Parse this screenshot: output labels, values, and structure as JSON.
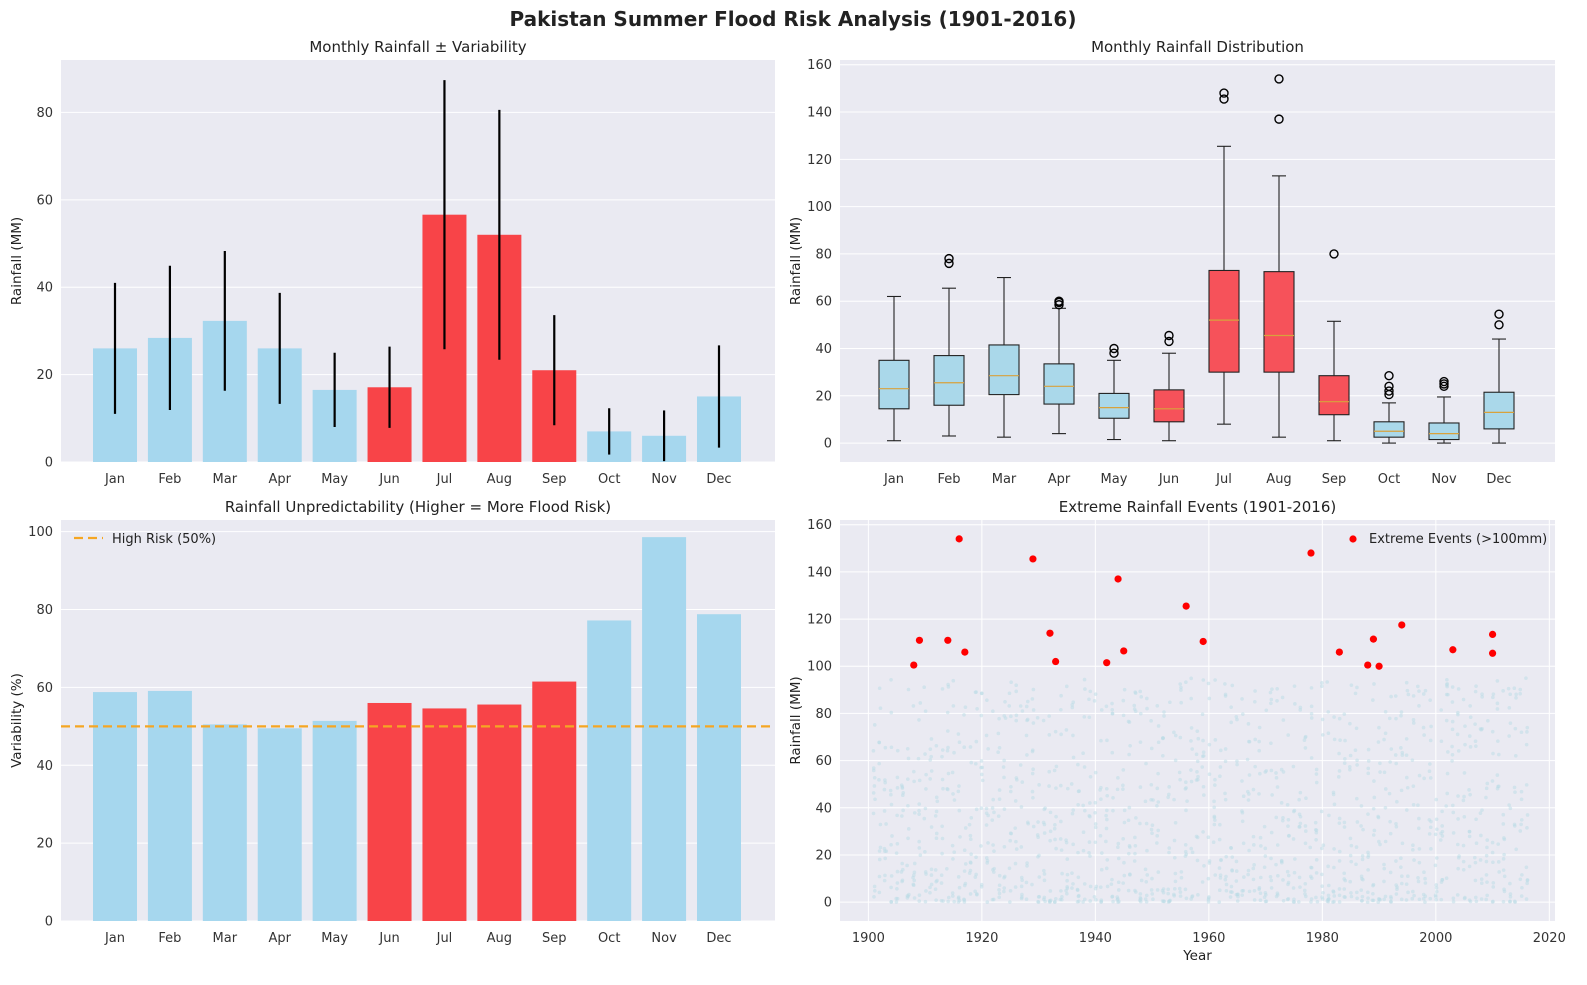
{
  "suptitle": "Pakistan Summer Flood Risk Analysis (1901-2016)",
  "chart_data": [
    {
      "type": "bar",
      "title": "Monthly Rainfall ± Variability",
      "xlabel": "",
      "ylabel": "Rainfall (MM)",
      "ylim": [
        0,
        92
      ],
      "yticks": [
        0,
        20,
        40,
        60,
        80
      ],
      "categories": [
        "Jan",
        "Feb",
        "Mar",
        "Apr",
        "May",
        "Jun",
        "Jul",
        "Aug",
        "Sep",
        "Oct",
        "Nov",
        "Dec"
      ],
      "values": [
        26.0,
        28.4,
        32.3,
        26.0,
        16.5,
        17.1,
        56.6,
        52.0,
        21.0,
        7.0,
        6.0,
        15.0
      ],
      "errors": [
        15.0,
        16.5,
        16.0,
        12.7,
        8.5,
        9.3,
        30.8,
        28.6,
        12.6,
        5.3,
        5.8,
        11.7
      ],
      "summer_months": [
        "Jun",
        "Jul",
        "Aug",
        "Sep"
      ],
      "grid": true,
      "colors": {
        "normal": "#a6d7ee",
        "summer": "#f84448",
        "error": "#000000",
        "bg": "#eaeaf2"
      }
    },
    {
      "type": "box",
      "title": "Monthly Rainfall Distribution",
      "xlabel": "",
      "ylabel": "Rainfall (MM)",
      "ylim": [
        -8,
        162
      ],
      "yticks": [
        0,
        20,
        40,
        60,
        80,
        100,
        120,
        140,
        160
      ],
      "categories": [
        "Jan",
        "Feb",
        "Mar",
        "Apr",
        "May",
        "Jun",
        "Jul",
        "Aug",
        "Sep",
        "Oct",
        "Nov",
        "Dec"
      ],
      "boxes": [
        {
          "low": 1,
          "q1": 14.5,
          "median": 23,
          "q3": 35,
          "high": 62,
          "outliers": []
        },
        {
          "low": 3,
          "q1": 16,
          "median": 25.5,
          "q3": 37,
          "high": 65.5,
          "outliers": [
            76,
            78
          ]
        },
        {
          "low": 2.5,
          "q1": 20.5,
          "median": 28.5,
          "q3": 41.5,
          "high": 70,
          "outliers": []
        },
        {
          "low": 4,
          "q1": 16.5,
          "median": 24,
          "q3": 33.5,
          "high": 57,
          "outliers": [
            58.5,
            59.5,
            60
          ]
        },
        {
          "low": 1.5,
          "q1": 10.5,
          "median": 15,
          "q3": 21,
          "high": 35,
          "outliers": [
            38,
            40
          ]
        },
        {
          "low": 1,
          "q1": 9,
          "median": 14.5,
          "q3": 22.5,
          "high": 38,
          "outliers": [
            43,
            45.5
          ]
        },
        {
          "low": 8,
          "q1": 30,
          "median": 52,
          "q3": 73,
          "high": 125.5,
          "outliers": [
            145.5,
            148
          ]
        },
        {
          "low": 2.5,
          "q1": 30,
          "median": 45.5,
          "q3": 72.5,
          "high": 113,
          "outliers": [
            137,
            154
          ]
        },
        {
          "low": 1,
          "q1": 12,
          "median": 17.5,
          "q3": 28.5,
          "high": 51.5,
          "outliers": [
            80
          ]
        },
        {
          "low": 0,
          "q1": 2.5,
          "median": 5,
          "q3": 9,
          "high": 17,
          "outliers": [
            20.5,
            22,
            24,
            28.5
          ]
        },
        {
          "low": 0,
          "q1": 1.5,
          "median": 4,
          "q3": 8.5,
          "high": 19.5,
          "outliers": [
            24,
            25,
            26
          ]
        },
        {
          "low": 0,
          "q1": 6,
          "median": 13,
          "q3": 21.5,
          "high": 44,
          "outliers": [
            50,
            54.5
          ]
        }
      ],
      "summer_months": [
        "Jun",
        "Jul",
        "Aug",
        "Sep"
      ],
      "grid": true,
      "colors": {
        "normal": "#aad8ea",
        "summer": "#f6525a",
        "median": "#d8a23c",
        "edge": "#222222",
        "bg": "#eaeaf2"
      }
    },
    {
      "type": "bar",
      "title": "Rainfall Unpredictability (Higher = More Flood Risk)",
      "xlabel": "",
      "ylabel": "Variability (%)",
      "ylim": [
        0,
        103
      ],
      "yticks": [
        0,
        20,
        40,
        60,
        80,
        100
      ],
      "categories": [
        "Jan",
        "Feb",
        "Mar",
        "Apr",
        "May",
        "Jun",
        "Jul",
        "Aug",
        "Sep",
        "Oct",
        "Nov",
        "Dec"
      ],
      "values": [
        58.8,
        59.1,
        50.5,
        49.5,
        51.4,
        56.0,
        54.6,
        55.6,
        61.5,
        77.2,
        98.6,
        78.8
      ],
      "threshold": {
        "value": 50,
        "label": "High Risk (50%)",
        "color": "#f5a623"
      },
      "legend_position": "upper-left",
      "summer_months": [
        "Jun",
        "Jul",
        "Aug",
        "Sep"
      ],
      "grid": true,
      "colors": {
        "normal": "#a6d7ee",
        "summer": "#f84448",
        "bg": "#eaeaf2"
      }
    },
    {
      "type": "scatter",
      "title": "Extreme Rainfall Events (1901-2016)",
      "xlabel": "Year",
      "ylabel": "Rainfall (MM)",
      "xlim": [
        1895,
        2021
      ],
      "ylim": [
        -8,
        162
      ],
      "xticks": [
        1900,
        1920,
        1940,
        1960,
        1980,
        2000,
        2020
      ],
      "yticks": [
        0,
        20,
        40,
        60,
        80,
        100,
        120,
        140,
        160
      ],
      "series": [
        {
          "name": "Extreme Events (>100mm)",
          "points": [
            [
              1908,
              100.5
            ],
            [
              1909,
              111
            ],
            [
              1914,
              111
            ],
            [
              1916,
              154
            ],
            [
              1917,
              106
            ],
            [
              1929,
              145.5
            ],
            [
              1932,
              114
            ],
            [
              1933,
              102
            ],
            [
              1942,
              101.5
            ],
            [
              1944,
              137
            ],
            [
              1945,
              106.5
            ],
            [
              1956,
              125.5
            ],
            [
              1959,
              110.5
            ],
            [
              1978,
              148
            ],
            [
              1983,
              106
            ],
            [
              1988,
              100.5
            ],
            [
              1989,
              111.5
            ],
            [
              1990,
              100
            ],
            [
              1994,
              117.5
            ],
            [
              2003,
              107
            ],
            [
              2010,
              113.5
            ],
            [
              2010,
              105.5
            ]
          ]
        }
      ],
      "background_points": "all monthly values 1901-2016 (faint)",
      "legend_position": "upper-right",
      "grid": true,
      "colors": {
        "extreme": "#ff0000",
        "background": "#b9dbe6",
        "bg": "#eaeaf2"
      }
    }
  ]
}
